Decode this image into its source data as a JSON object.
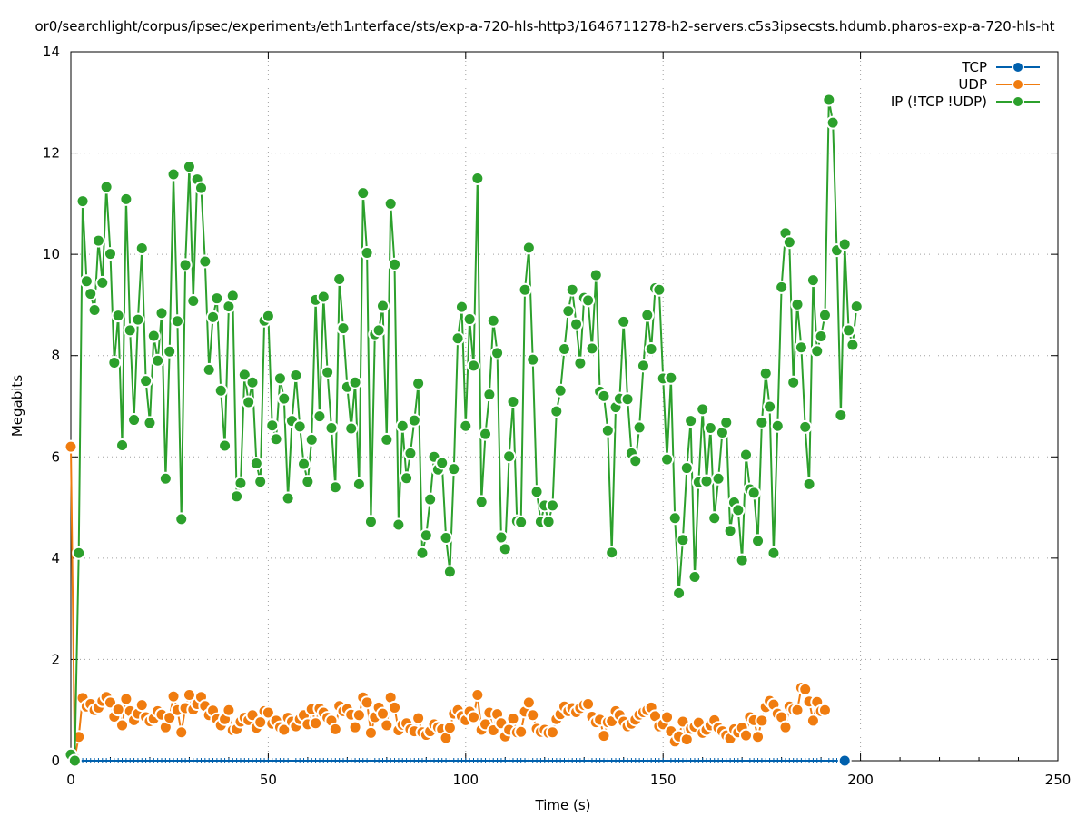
{
  "chart_data": {
    "type": "line",
    "title": "or0/searchlight/corpus/ipsec/experiment₃/eth1ᵢnterface/sts/exp-a-720-hls-http3/1646711278-h2-servers.c5s3ipsecsts.hdumb.pharos-exp-a-720-hls-ht",
    "xlabel": "Time (s)",
    "ylabel": "Megabits",
    "xlim": [
      0,
      250
    ],
    "ylim": [
      0,
      14
    ],
    "xticks": [
      0,
      50,
      100,
      150,
      200,
      250
    ],
    "yticks": [
      0,
      2,
      4,
      6,
      8,
      10,
      12,
      14
    ],
    "x_tick_labels": [
      "0",
      "50",
      "100",
      "150",
      "200",
      "250"
    ],
    "y_tick_labels": [
      "0",
      "2",
      "4",
      "6",
      "8",
      "10",
      "12",
      "14"
    ],
    "grid": true,
    "legend_position": "top-right",
    "x_start": 0,
    "x_step": 1.0,
    "series": [
      {
        "name": "TCP",
        "color": "#0060ad",
        "values": [
          0.0,
          0.0,
          0.0,
          0.0,
          0.0,
          0.0,
          0.0,
          0.0,
          0.0,
          0.0,
          0.0,
          0.0,
          0.0,
          0.0,
          0.0,
          0.0,
          0.0,
          0.0,
          0.0,
          0.0,
          0.0,
          0.0,
          0.0,
          0.0,
          0.0,
          0.0,
          0.0,
          0.0,
          0.0,
          0.0,
          0.0,
          0.0,
          0.0,
          0.0,
          0.0,
          0.0,
          0.0,
          0.0,
          0.0,
          0.0,
          0.0,
          0.0,
          0.0,
          0.0,
          0.0,
          0.0,
          0.0,
          0.0,
          0.0,
          0.0,
          0.0,
          0.0,
          0.0,
          0.0,
          0.0,
          0.0,
          0.0,
          0.0,
          0.0,
          0.0,
          0.0,
          0.0,
          0.0,
          0.0,
          0.0,
          0.0,
          0.0,
          0.0,
          0.0,
          0.0,
          0.0,
          0.0,
          0.0,
          0.0,
          0.0,
          0.0,
          0.0,
          0.0,
          0.0,
          0.0,
          0.0,
          0.0,
          0.0,
          0.0,
          0.0,
          0.0,
          0.0,
          0.0,
          0.0,
          0.0,
          0.0,
          0.0,
          0.0,
          0.0,
          0.0,
          0.0,
          0.0,
          0.0,
          0.0,
          0.0,
          0.0,
          0.0,
          0.0,
          0.0,
          0.0,
          0.0,
          0.0,
          0.0,
          0.0,
          0.0,
          0.0,
          0.0,
          0.0,
          0.0,
          0.0,
          0.0,
          0.0,
          0.0,
          0.0,
          0.0,
          0.0,
          0.0,
          0.0,
          0.0,
          0.0,
          0.0,
          0.0,
          0.0,
          0.0,
          0.0,
          0.0,
          0.0,
          0.0,
          0.0,
          0.0,
          0.0,
          0.0,
          0.0,
          0.0,
          0.0,
          0.0,
          0.0,
          0.0,
          0.0,
          0.0,
          0.0,
          0.0,
          0.0,
          0.0,
          0.0,
          0.0,
          0.0,
          0.0,
          0.0,
          0.0,
          0.0,
          0.0,
          0.0,
          0.0,
          0.0,
          0.0,
          0.0,
          0.0,
          0.0,
          0.0,
          0.0,
          0.0,
          0.0,
          0.0,
          0.0,
          0.0,
          0.0,
          0.0,
          0.0,
          0.0,
          0.0,
          0.0,
          0.0,
          0.0,
          0.0,
          0.0,
          0.0,
          0.0,
          0.0,
          0.0,
          0.0,
          0.0,
          0.0,
          0.0,
          0.0,
          0.0,
          0.0,
          0.0,
          0.0,
          0.0,
          0.0,
          0.0
        ]
      },
      {
        "name": "UDP",
        "color": "#f07c0f",
        "values": [
          6.2,
          0.05,
          0.47,
          1.24,
          1.07,
          1.12,
          1.0,
          1.05,
          1.18,
          1.26,
          1.15,
          0.87,
          1.01,
          0.7,
          1.22,
          0.98,
          0.8,
          0.93,
          1.1,
          0.86,
          0.78,
          0.83,
          0.98,
          0.91,
          0.66,
          0.85,
          1.27,
          1.0,
          0.56,
          1.04,
          1.3,
          1.01,
          1.12,
          1.26,
          1.08,
          0.9,
          0.99,
          0.82,
          0.7,
          0.82,
          1.0,
          0.6,
          0.62,
          0.77,
          0.85,
          0.8,
          0.9,
          0.65,
          0.76,
          0.98,
          0.95,
          0.73,
          0.79,
          0.66,
          0.61,
          0.85,
          0.77,
          0.68,
          0.82,
          0.9,
          0.72,
          1.02,
          0.74,
          1.03,
          0.95,
          0.85,
          0.79,
          0.62,
          1.08,
          0.98,
          1.02,
          0.91,
          0.66,
          0.9,
          1.25,
          1.15,
          0.55,
          0.86,
          1.05,
          0.93,
          0.7,
          1.25,
          1.05,
          0.6,
          0.71,
          0.74,
          0.62,
          0.58,
          0.84,
          0.56,
          0.51,
          0.58,
          0.72,
          0.66,
          0.62,
          0.45,
          0.65,
          0.93,
          1.0,
          0.88,
          0.8,
          0.97,
          0.86,
          1.3,
          0.61,
          0.72,
          0.95,
          0.6,
          0.92,
          0.74,
          0.48,
          0.61,
          0.83,
          0.56,
          0.57,
          0.97,
          1.15,
          0.9,
          0.63,
          0.57,
          0.61,
          0.55,
          0.56,
          0.82,
          0.92,
          1.07,
          0.98,
          1.04,
          0.96,
          1.04,
          1.1,
          1.12,
          0.87,
          0.76,
          0.81,
          0.49,
          0.76,
          0.78,
          0.98,
          0.9,
          0.77,
          0.68,
          0.73,
          0.81,
          0.91,
          0.96,
          1.0,
          1.05,
          0.88,
          0.68,
          0.72,
          0.86,
          0.58,
          0.38,
          0.48,
          0.77,
          0.42,
          0.63,
          0.67,
          0.75,
          0.55,
          0.61,
          0.7,
          0.8,
          0.65,
          0.58,
          0.5,
          0.44,
          0.62,
          0.56,
          0.65,
          0.5,
          0.86,
          0.8,
          0.47,
          0.79,
          1.06,
          1.18,
          1.11,
          0.93,
          0.86,
          0.66,
          1.07,
          1.01,
          1.0,
          1.44,
          1.41,
          1.17,
          0.79,
          1.16,
          0.98,
          1.0
        ]
      },
      {
        "name": "IP (!TCP  !UDP)",
        "color": "#2ca02c",
        "values": [
          0.12,
          0.0,
          4.1,
          11.05,
          9.47,
          9.22,
          8.9,
          10.27,
          9.44,
          11.33,
          10.01,
          7.86,
          8.79,
          6.23,
          11.09,
          8.5,
          6.73,
          8.71,
          10.12,
          7.5,
          6.67,
          8.39,
          7.9,
          8.84,
          5.57,
          8.08,
          11.58,
          8.68,
          4.77,
          9.79,
          11.73,
          9.08,
          11.48,
          11.31,
          9.86,
          7.72,
          8.76,
          9.13,
          7.31,
          6.22,
          8.97,
          9.18,
          5.22,
          5.48,
          7.62,
          7.08,
          7.47,
          5.87,
          5.51,
          8.69,
          8.78,
          6.62,
          6.35,
          7.55,
          7.15,
          5.18,
          6.71,
          7.61,
          6.6,
          5.86,
          5.51,
          6.34,
          9.1,
          6.8,
          9.16,
          7.67,
          6.57,
          5.4,
          9.51,
          8.54,
          7.38,
          6.56,
          7.47,
          5.46,
          11.21,
          10.03,
          4.72,
          8.42,
          8.5,
          8.98,
          6.34,
          11.0,
          9.8,
          4.66,
          6.61,
          5.58,
          6.07,
          6.72,
          7.45,
          4.1,
          4.45,
          5.16,
          6.0,
          5.75,
          5.88,
          4.4,
          3.73,
          5.76,
          8.34,
          8.96,
          6.61,
          8.72,
          7.8,
          11.5,
          5.11,
          6.45,
          7.23,
          8.69,
          8.05,
          4.41,
          4.18,
          6.01,
          7.09,
          4.73,
          4.71,
          9.3,
          10.13,
          7.92,
          5.31,
          4.72,
          5.04,
          4.72,
          5.04,
          6.9,
          7.31,
          8.13,
          8.88,
          9.3,
          8.62,
          7.85,
          9.14,
          9.09,
          8.14,
          9.59,
          7.29,
          7.2,
          6.52,
          4.11,
          6.98,
          7.15,
          8.67,
          7.14,
          6.07,
          5.92,
          6.58,
          7.8,
          8.8,
          8.13,
          9.33,
          9.3,
          7.55,
          5.95,
          7.56,
          4.79,
          3.31,
          4.36,
          5.78,
          6.71,
          3.63,
          5.5,
          6.94,
          5.52,
          6.57,
          4.79,
          5.57,
          6.48,
          6.68,
          4.54,
          5.1,
          4.95,
          3.96,
          6.04,
          5.36,
          5.29,
          4.34,
          6.68,
          7.65,
          6.99,
          4.1,
          6.61,
          9.35,
          10.42,
          10.24,
          7.47,
          9.01,
          8.16,
          6.59,
          5.46,
          9.49,
          8.09,
          8.38,
          8.8,
          13.05,
          12.6,
          10.08,
          6.82,
          10.2,
          8.5,
          8.21,
          8.97
        ]
      }
    ]
  }
}
